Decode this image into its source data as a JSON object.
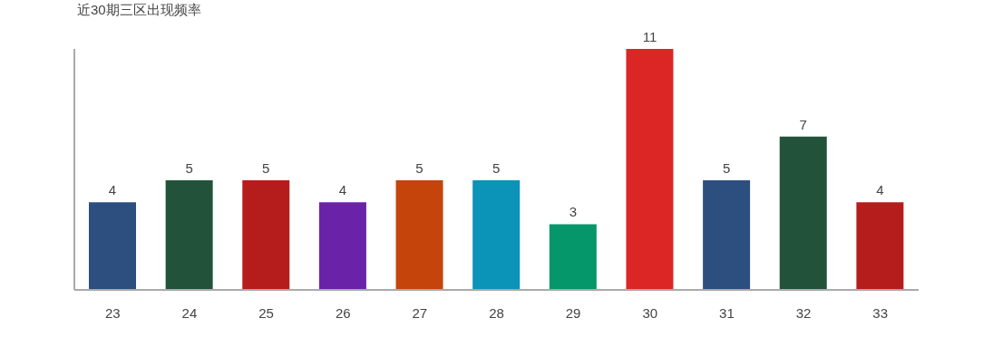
{
  "chart_data": {
    "type": "bar",
    "title": "近30期三区出现频率",
    "categories": [
      "23",
      "24",
      "25",
      "26",
      "27",
      "28",
      "29",
      "30",
      "31",
      "32",
      "33"
    ],
    "values": [
      4,
      5,
      5,
      4,
      5,
      5,
      3,
      11,
      5,
      7,
      4
    ],
    "colors": [
      "#2d4f7f",
      "#22533a",
      "#b51c1c",
      "#6a23a8",
      "#c4440c",
      "#0b93b8",
      "#05966a",
      "#dc2626",
      "#2d4f7f",
      "#22533a",
      "#b51c1c"
    ],
    "data_labels": true,
    "grid": false,
    "legend": false
  }
}
